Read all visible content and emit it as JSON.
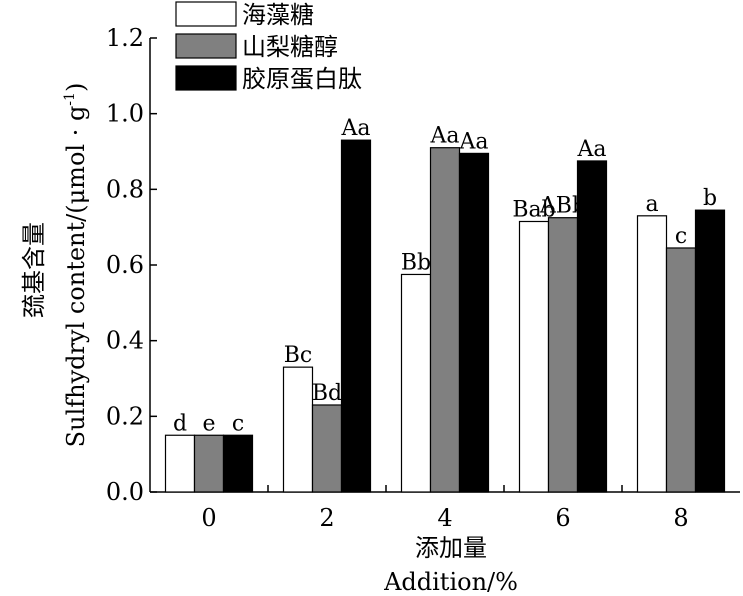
{
  "chart_data": {
    "type": "bar",
    "categories": [
      "0",
      "2",
      "4",
      "6",
      "8"
    ],
    "series": [
      {
        "name": "海藻糖",
        "color": "#ffffff",
        "values": [
          0.15,
          0.33,
          0.575,
          0.715,
          0.73
        ],
        "labels": [
          "d",
          "Bc",
          "Bb",
          "Bab",
          "a"
        ]
      },
      {
        "name": "山梨糖醇",
        "color": "#808080",
        "values": [
          0.15,
          0.23,
          0.91,
          0.725,
          0.645
        ],
        "labels": [
          "e",
          "Bd",
          "Aa",
          "ABb",
          "c"
        ]
      },
      {
        "name": "胶原蛋白肽",
        "color": "#000000",
        "values": [
          0.15,
          0.93,
          0.895,
          0.875,
          0.745
        ],
        "labels": [
          "c",
          "Aa",
          "Aa",
          "Aa",
          "b"
        ]
      }
    ],
    "ylim": [
      0,
      1.2
    ],
    "yticks": [
      "0.0",
      "0.2",
      "0.4",
      "0.6",
      "0.8",
      "1.0",
      "1.2"
    ],
    "ylabel_cn": "巯基含量",
    "ylabel_en": "Sulfhydryl content/(μmol · g",
    "ylabel_en_sup": "-1",
    "ylabel_en_end": ")",
    "xlabel_cn": "添加量",
    "xlabel_en": "Addition/%",
    "legend_position": "top-left",
    "grid": false
  }
}
